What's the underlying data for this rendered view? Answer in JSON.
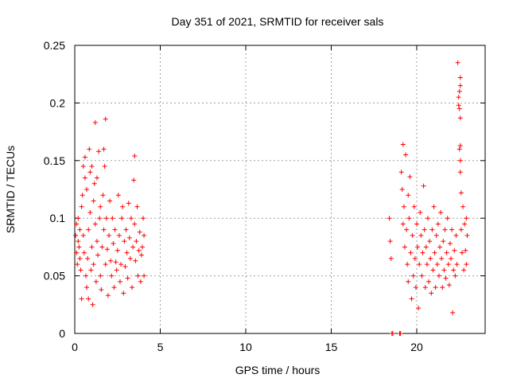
{
  "chart_data": {
    "type": "scatter",
    "title": "Day 351 of 2021, SRMTID for receiver sals",
    "xlabel": "GPS time / hours",
    "ylabel": "SRMTID / TECUs",
    "xlim": [
      0,
      24
    ],
    "ylim": [
      0,
      0.25
    ],
    "xticks": [
      0,
      5,
      10,
      15,
      20
    ],
    "xtick_labels": [
      "0",
      "5",
      "10",
      "15",
      "20"
    ],
    "yticks": [
      0,
      0.05,
      0.1,
      0.15,
      0.2,
      0.25
    ],
    "ytick_labels": [
      "0",
      "0.05",
      "0.1",
      "0.15",
      "0.2",
      "0.25"
    ],
    "grid": true,
    "marker": "+",
    "color": "#ff0000",
    "series": [
      {
        "name": "SRMTID",
        "points": [
          [
            0.05,
            0.085
          ],
          [
            0.1,
            0.095
          ],
          [
            0.1,
            0.07
          ],
          [
            0.15,
            0.06
          ],
          [
            0.2,
            0.08
          ],
          [
            0.2,
            0.1
          ],
          [
            0.25,
            0.075
          ],
          [
            0.3,
            0.065
          ],
          [
            0.3,
            0.09
          ],
          [
            0.35,
            0.055
          ],
          [
            0.4,
            0.03
          ],
          [
            0.4,
            0.11
          ],
          [
            0.45,
            0.12
          ],
          [
            0.5,
            0.145
          ],
          [
            0.5,
            0.085
          ],
          [
            0.55,
            0.07
          ],
          [
            0.6,
            0.153
          ],
          [
            0.6,
            0.135
          ],
          [
            0.65,
            0.05
          ],
          [
            0.7,
            0.125
          ],
          [
            0.7,
            0.04
          ],
          [
            0.75,
            0.065
          ],
          [
            0.8,
            0.03
          ],
          [
            0.8,
            0.09
          ],
          [
            0.85,
            0.16
          ],
          [
            0.9,
            0.14
          ],
          [
            0.9,
            0.105
          ],
          [
            0.95,
            0.055
          ],
          [
            1.0,
            0.145
          ],
          [
            1.0,
            0.075
          ],
          [
            1.05,
            0.025
          ],
          [
            1.1,
            0.115
          ],
          [
            1.1,
            0.06
          ],
          [
            1.15,
            0.13
          ],
          [
            1.2,
            0.183
          ],
          [
            1.2,
            0.095
          ],
          [
            1.25,
            0.045
          ],
          [
            1.3,
            0.135
          ],
          [
            1.3,
            0.08
          ],
          [
            1.35,
            0.068
          ],
          [
            1.4,
            0.158
          ],
          [
            1.45,
            0.1
          ],
          [
            1.5,
            0.11
          ],
          [
            1.5,
            0.05
          ],
          [
            1.55,
            0.038
          ],
          [
            1.6,
            0.075
          ],
          [
            1.65,
            0.12
          ],
          [
            1.7,
            0.09
          ],
          [
            1.7,
            0.16
          ],
          [
            1.75,
            0.145
          ],
          [
            1.8,
            0.186
          ],
          [
            1.8,
            0.06
          ],
          [
            1.85,
            0.1
          ],
          [
            1.9,
            0.073
          ],
          [
            1.95,
            0.033
          ],
          [
            2.0,
            0.085
          ],
          [
            2.05,
            0.115
          ],
          [
            2.1,
            0.063
          ],
          [
            2.15,
            0.05
          ],
          [
            2.2,
            0.1
          ],
          [
            2.25,
            0.078
          ],
          [
            2.3,
            0.04
          ],
          [
            2.35,
            0.09
          ],
          [
            2.4,
            0.062
          ],
          [
            2.45,
            0.055
          ],
          [
            2.5,
            0.072
          ],
          [
            2.55,
            0.12
          ],
          [
            2.6,
            0.085
          ],
          [
            2.65,
            0.045
          ],
          [
            2.7,
            0.06
          ],
          [
            2.75,
            0.1
          ],
          [
            2.8,
            0.11
          ],
          [
            2.85,
            0.035
          ],
          [
            2.9,
            0.08
          ],
          [
            2.95,
            0.058
          ],
          [
            3.0,
            0.09
          ],
          [
            3.05,
            0.07
          ],
          [
            3.1,
            0.048
          ],
          [
            3.15,
            0.113
          ],
          [
            3.2,
            0.083
          ],
          [
            3.25,
            0.065
          ],
          [
            3.3,
            0.1
          ],
          [
            3.35,
            0.04
          ],
          [
            3.4,
            0.075
          ],
          [
            3.45,
            0.133
          ],
          [
            3.5,
            0.154
          ],
          [
            3.5,
            0.095
          ],
          [
            3.55,
            0.063
          ],
          [
            3.6,
            0.08
          ],
          [
            3.65,
            0.11
          ],
          [
            3.7,
            0.05
          ],
          [
            3.75,
            0.072
          ],
          [
            3.8,
            0.088
          ],
          [
            3.85,
            0.045
          ],
          [
            3.9,
            0.068
          ],
          [
            3.95,
            0.075
          ],
          [
            4.0,
            0.1
          ],
          [
            4.05,
            0.05
          ],
          [
            4.05,
            0.085
          ],
          [
            18.4,
            0.1
          ],
          [
            18.45,
            0.08
          ],
          [
            18.5,
            0.065
          ],
          [
            18.55,
            0.0
          ],
          [
            18.6,
            0.0
          ],
          [
            19.0,
            0.0
          ],
          [
            19.05,
            0.0
          ],
          [
            19.1,
            0.14
          ],
          [
            19.15,
            0.125
          ],
          [
            19.2,
            0.164
          ],
          [
            19.2,
            0.095
          ],
          [
            19.25,
            0.11
          ],
          [
            19.3,
            0.075
          ],
          [
            19.35,
            0.155
          ],
          [
            19.4,
            0.09
          ],
          [
            19.45,
            0.06
          ],
          [
            19.5,
            0.12
          ],
          [
            19.5,
            0.045
          ],
          [
            19.55,
            0.1
          ],
          [
            19.6,
            0.136
          ],
          [
            19.65,
            0.07
          ],
          [
            19.7,
            0.03
          ],
          [
            19.75,
            0.085
          ],
          [
            19.8,
            0.05
          ],
          [
            19.85,
            0.11
          ],
          [
            19.9,
            0.065
          ],
          [
            19.95,
            0.04
          ],
          [
            20.0,
            0.095
          ],
          [
            20.05,
            0.075
          ],
          [
            20.1,
            0.022
          ],
          [
            20.15,
            0.06
          ],
          [
            20.2,
            0.105
          ],
          [
            20.25,
            0.085
          ],
          [
            20.3,
            0.05
          ],
          [
            20.35,
            0.07
          ],
          [
            20.4,
            0.128
          ],
          [
            20.45,
            0.09
          ],
          [
            20.5,
            0.04
          ],
          [
            20.55,
            0.075
          ],
          [
            20.6,
            0.06
          ],
          [
            20.65,
            0.1
          ],
          [
            20.7,
            0.045
          ],
          [
            20.75,
            0.08
          ],
          [
            20.8,
            0.065
          ],
          [
            20.85,
            0.035
          ],
          [
            20.9,
            0.09
          ],
          [
            20.95,
            0.055
          ],
          [
            21.0,
            0.11
          ],
          [
            21.05,
            0.07
          ],
          [
            21.1,
            0.04
          ],
          [
            21.15,
            0.085
          ],
          [
            21.2,
            0.06
          ],
          [
            21.25,
            0.095
          ],
          [
            21.3,
            0.05
          ],
          [
            21.35,
            0.075
          ],
          [
            21.4,
            0.105
          ],
          [
            21.45,
            0.065
          ],
          [
            21.5,
            0.04
          ],
          [
            21.55,
            0.08
          ],
          [
            21.6,
            0.055
          ],
          [
            21.65,
            0.09
          ],
          [
            21.7,
            0.048
          ],
          [
            21.75,
            0.07
          ],
          [
            21.8,
            0.1
          ],
          [
            21.85,
            0.06
          ],
          [
            21.9,
            0.042
          ],
          [
            21.95,
            0.078
          ],
          [
            22.0,
            0.065
          ],
          [
            22.05,
            0.09
          ],
          [
            22.1,
            0.018
          ],
          [
            22.15,
            0.055
          ],
          [
            22.2,
            0.072
          ],
          [
            22.25,
            0.05
          ],
          [
            22.3,
            0.085
          ],
          [
            22.35,
            0.06
          ],
          [
            22.4,
            0.235
          ],
          [
            22.45,
            0.205
          ],
          [
            22.45,
            0.198
          ],
          [
            22.5,
            0.21
          ],
          [
            22.5,
            0.195
          ],
          [
            22.55,
            0.222
          ],
          [
            22.55,
            0.215
          ],
          [
            22.55,
            0.187
          ],
          [
            22.55,
            0.163
          ],
          [
            22.5,
            0.16
          ],
          [
            22.55,
            0.15
          ],
          [
            22.55,
            0.14
          ],
          [
            22.6,
            0.122
          ],
          [
            22.6,
            0.09
          ],
          [
            22.65,
            0.07
          ],
          [
            22.7,
            0.11
          ],
          [
            22.75,
            0.055
          ],
          [
            22.8,
            0.095
          ],
          [
            22.85,
            0.072
          ],
          [
            22.9,
            0.1
          ],
          [
            22.9,
            0.06
          ],
          [
            22.95,
            0.085
          ]
        ]
      }
    ]
  }
}
